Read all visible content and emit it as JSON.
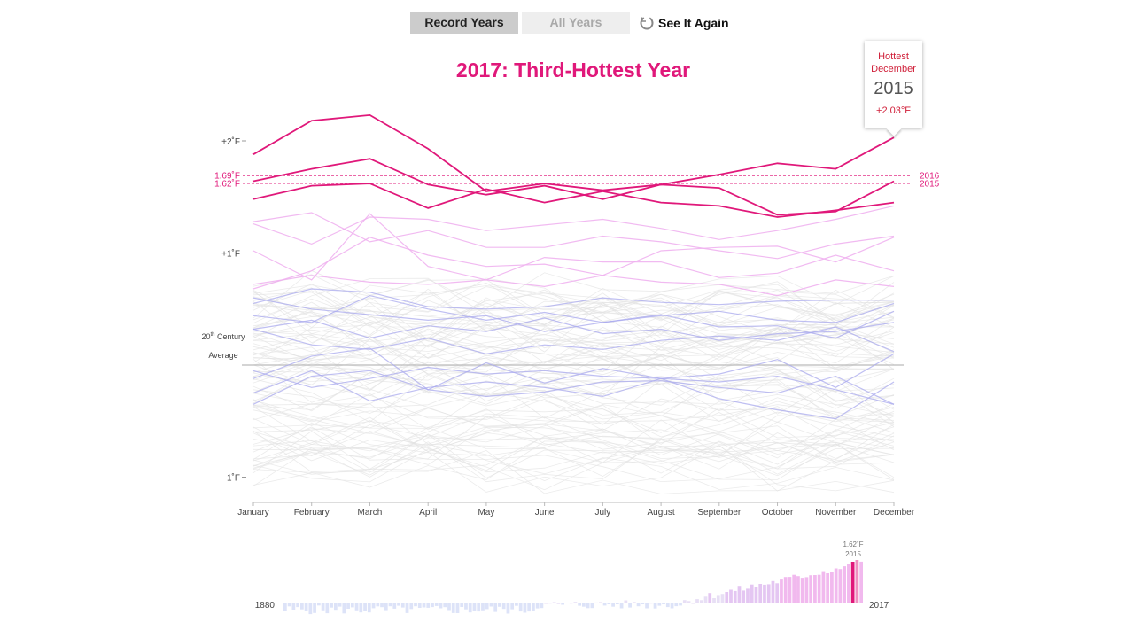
{
  "controls": {
    "record_years": "Record Years",
    "all_years": "All Years",
    "see_it_again": "See It Again"
  },
  "title": "2017: Third-Hottest Year",
  "tooltip": {
    "label_line1": "Hottest",
    "label_line2": "December",
    "year": "2015",
    "value": "+2.03°F"
  },
  "colors": {
    "record_line": "#e0187a",
    "title": "#e0187a",
    "tooltip_red": "#d0203a",
    "warm_faint": "#efaeef",
    "cool_faint": "#a9a9ee",
    "background_lines": "#e3e3e3",
    "baseline": "#bbbbbb"
  },
  "avg_label": {
    "line1": "20",
    "sup": "th",
    "line1_rest": " Century",
    "line2": "Average"
  },
  "chart_data": {
    "type": "line",
    "x": [
      "January",
      "February",
      "March",
      "April",
      "May",
      "June",
      "July",
      "August",
      "September",
      "October",
      "November",
      "December"
    ],
    "y_ticks": [
      {
        "value": 2,
        "label": "+2˚F"
      },
      {
        "value": 1,
        "label": "+1˚F"
      },
      {
        "value": -1,
        "label": "-1˚F"
      }
    ],
    "ylim": [
      -1.22,
      2.2
    ],
    "reference_lines": [
      {
        "value": 1.69,
        "left_label": "1.69˚F",
        "right_label": "2016"
      },
      {
        "value": 1.62,
        "left_label": "1.62˚F",
        "right_label": "2015"
      }
    ],
    "series": [
      {
        "values": [
          1.88,
          2.18,
          2.23,
          1.93,
          1.55,
          1.62,
          1.56,
          1.61,
          1.58,
          1.34,
          1.37,
          1.64
        ],
        "style": "record"
      },
      {
        "values": [
          1.64,
          1.75,
          1.84,
          1.61,
          1.52,
          1.6,
          1.48,
          1.61,
          1.7,
          1.8,
          1.75,
          2.03
        ],
        "style": "record"
      },
      {
        "values": [
          1.48,
          1.6,
          1.62,
          1.4,
          1.57,
          1.45,
          1.55,
          1.45,
          1.42,
          1.32,
          1.38,
          1.45
        ],
        "style": "record"
      },
      {
        "values": [
          1.26,
          1.08,
          1.32,
          1.3,
          1.2,
          1.25,
          1.3,
          1.22,
          1.12,
          1.2,
          1.3,
          1.42
        ],
        "style": "warm"
      },
      {
        "values": [
          1.28,
          1.36,
          1.1,
          1.2,
          1.05,
          1.05,
          1.15,
          1.1,
          1.02,
          0.95,
          1.08,
          1.15
        ],
        "style": "warm"
      },
      {
        "values": [
          0.68,
          0.84,
          1.14,
          0.98,
          0.88,
          0.9,
          0.8,
          1.02,
          1.05,
          1.06,
          0.92,
          1.14
        ],
        "style": "warm"
      },
      {
        "values": [
          1.02,
          0.76,
          1.35,
          0.88,
          0.76,
          0.96,
          0.92,
          0.92,
          0.78,
          0.82,
          0.98,
          0.84
        ],
        "style": "warm"
      },
      {
        "values": [
          0.72,
          0.8,
          0.74,
          0.72,
          0.76,
          0.7,
          0.8,
          0.74,
          0.72,
          0.62,
          0.76,
          0.7
        ],
        "style": "warm"
      },
      {
        "values": [
          0.55,
          0.68,
          0.65,
          0.52,
          0.5,
          0.52,
          0.6,
          0.56,
          0.54,
          0.57,
          0.58,
          0.58
        ],
        "style": "cool"
      },
      {
        "values": [
          0.44,
          0.38,
          0.62,
          0.5,
          0.4,
          0.47,
          0.38,
          0.44,
          0.48,
          0.4,
          0.38,
          0.55
        ],
        "style": "cool"
      },
      {
        "values": [
          0.6,
          0.5,
          0.45,
          0.4,
          0.44,
          0.3,
          0.38,
          0.45,
          0.34,
          0.35,
          0.24,
          0.48
        ],
        "style": "cool"
      },
      {
        "values": [
          0.32,
          0.4,
          0.24,
          0.35,
          0.3,
          0.42,
          0.28,
          0.32,
          0.22,
          0.28,
          0.3,
          0.38
        ],
        "style": "cool"
      },
      {
        "values": [
          0.32,
          0.18,
          0.14,
          0.24,
          0.1,
          0.18,
          0.14,
          0.22,
          0.26,
          0.22,
          0.34,
          0.12
        ],
        "style": "cool"
      },
      {
        "values": [
          -0.12,
          0.08,
          0.15,
          -0.22,
          0.02,
          -0.16,
          -0.03,
          -0.12,
          -0.08,
          0.05,
          -0.2,
          0.1
        ],
        "style": "cool"
      },
      {
        "values": [
          -0.05,
          -0.2,
          -0.12,
          -0.02,
          -0.08,
          -0.05,
          -0.1,
          -0.12,
          -0.15,
          -0.1,
          -0.22,
          -0.35
        ],
        "style": "cool"
      },
      {
        "values": [
          -0.25,
          -0.05,
          -0.32,
          -0.2,
          -0.15,
          -0.2,
          -0.28,
          -0.12,
          -0.3,
          -0.4,
          -0.48,
          -0.15
        ],
        "style": "cool"
      },
      {
        "values": [
          -0.35,
          -0.1,
          -0.05,
          -0.22,
          -0.28,
          -0.24,
          -0.15,
          -0.14,
          -0.2,
          -0.25,
          -0.1,
          -0.35
        ],
        "style": "cool"
      }
    ],
    "background_series_count": 90,
    "annual_strip": {
      "first_year": "1880",
      "last_year": "2017",
      "highlight_value": "1.62˚F",
      "highlight_year": "2015"
    }
  }
}
